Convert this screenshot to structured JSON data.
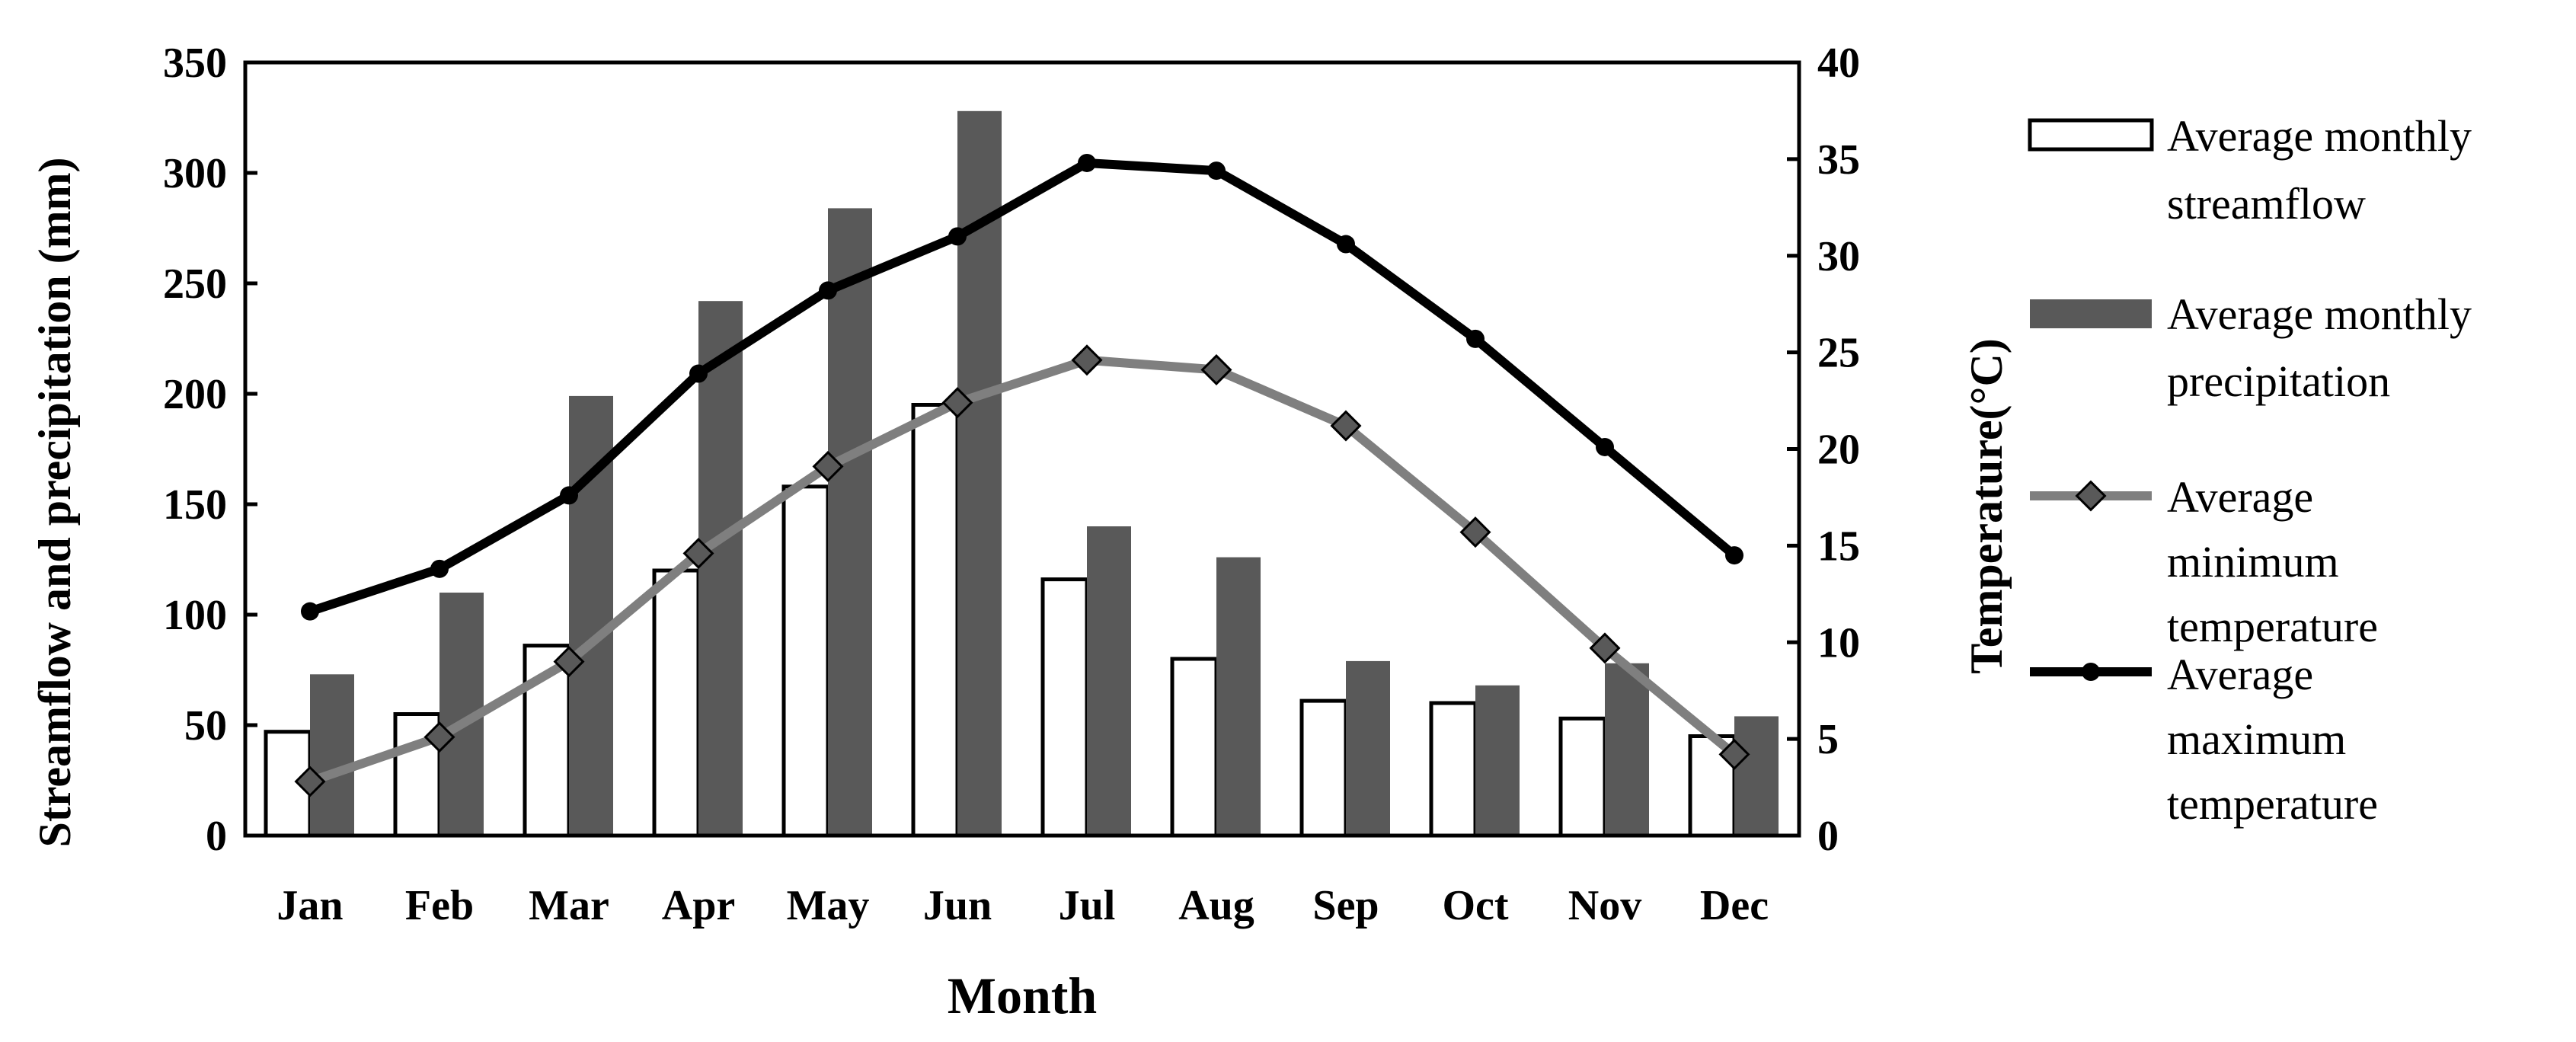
{
  "chart_data": {
    "type": "bar",
    "categories": [
      "Jan",
      "Feb",
      "Mar",
      "Apr",
      "May",
      "Jun",
      "Jul",
      "Aug",
      "Sep",
      "Oct",
      "Nov",
      "Dec"
    ],
    "xlabel": "Month",
    "ylabel": "Streamflow and precipitation (mm)",
    "y2label": "Temperature(°C)",
    "ylim": [
      0,
      350
    ],
    "y2lim": [
      0,
      40
    ],
    "yticks": [
      0,
      50,
      100,
      150,
      200,
      250,
      300,
      350
    ],
    "y2ticks": [
      0,
      5,
      10,
      15,
      20,
      25,
      30,
      35,
      40
    ],
    "grid": false,
    "legend_position": "right",
    "series": [
      {
        "name": "Average monthly streamflow",
        "type": "bar",
        "axis": "left",
        "color": "#ffffff",
        "values": [
          47,
          55,
          86,
          120,
          158,
          195,
          116,
          80,
          61,
          60,
          53,
          45
        ]
      },
      {
        "name": "Average monthly precipitation",
        "type": "bar",
        "axis": "left",
        "color": "#595959",
        "values": [
          73,
          110,
          199,
          242,
          284,
          328,
          140,
          126,
          79,
          68,
          78,
          54
        ]
      },
      {
        "name": "Average minimum temperature",
        "type": "line",
        "axis": "right",
        "color": "#7f7f7f",
        "values": [
          2.8,
          5.1,
          9.0,
          14.6,
          19.1,
          22.4,
          24.6,
          24.1,
          21.2,
          15.7,
          9.7,
          4.2
        ]
      },
      {
        "name": "Average maximum temperature",
        "type": "line",
        "axis": "right",
        "color": "#000000",
        "values": [
          11.6,
          13.8,
          17.6,
          23.9,
          28.2,
          31.0,
          34.8,
          34.4,
          30.6,
          25.7,
          20.1,
          14.5
        ]
      }
    ],
    "legend": [
      {
        "lines": [
          "Average monthly",
          "streamflow"
        ]
      },
      {
        "lines": [
          "Average monthly",
          "precipitation"
        ]
      },
      {
        "lines": [
          "Average",
          "minimum",
          "temperature"
        ]
      },
      {
        "lines": [
          "Average",
          "maximum",
          "temperature"
        ]
      }
    ]
  }
}
